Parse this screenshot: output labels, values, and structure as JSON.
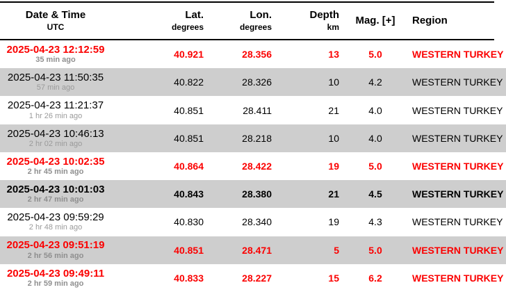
{
  "table": {
    "columns": [
      {
        "label": "Date & Time",
        "sublabel": "UTC"
      },
      {
        "label": "Lat.",
        "sublabel": "degrees"
      },
      {
        "label": "Lon.",
        "sublabel": "degrees"
      },
      {
        "label": "Depth",
        "sublabel": "km"
      },
      {
        "label": "Mag. [+]",
        "sublabel": ""
      },
      {
        "label": "Region",
        "sublabel": ""
      }
    ],
    "rows": [
      {
        "datetime": "2025-04-23 12:12:59",
        "ago": "35 min ago",
        "lat": "40.921",
        "lon": "28.356",
        "depth": "13",
        "mag": "5.0",
        "region": "WESTERN TURKEY",
        "style": "red"
      },
      {
        "datetime": "2025-04-23 11:50:35",
        "ago": "57 min ago",
        "lat": "40.822",
        "lon": "28.326",
        "depth": "10",
        "mag": "4.2",
        "region": "WESTERN TURKEY",
        "style": "normal"
      },
      {
        "datetime": "2025-04-23 11:21:37",
        "ago": "1 hr 26 min ago",
        "lat": "40.851",
        "lon": "28.411",
        "depth": "21",
        "mag": "4.0",
        "region": "WESTERN TURKEY",
        "style": "normal"
      },
      {
        "datetime": "2025-04-23 10:46:13",
        "ago": "2 hr 02 min ago",
        "lat": "40.851",
        "lon": "28.218",
        "depth": "10",
        "mag": "4.0",
        "region": "WESTERN TURKEY",
        "style": "normal"
      },
      {
        "datetime": "2025-04-23 10:02:35",
        "ago": "2 hr 45 min ago",
        "lat": "40.864",
        "lon": "28.422",
        "depth": "19",
        "mag": "5.0",
        "region": "WESTERN TURKEY",
        "style": "red"
      },
      {
        "datetime": "2025-04-23 10:01:03",
        "ago": "2 hr 47 min ago",
        "lat": "40.843",
        "lon": "28.380",
        "depth": "21",
        "mag": "4.5",
        "region": "WESTERN TURKEY",
        "style": "bold"
      },
      {
        "datetime": "2025-04-23 09:59:29",
        "ago": "2 hr 48 min ago",
        "lat": "40.830",
        "lon": "28.340",
        "depth": "19",
        "mag": "4.3",
        "region": "WESTERN TURKEY",
        "style": "normal"
      },
      {
        "datetime": "2025-04-23 09:51:19",
        "ago": "2 hr 56 min ago",
        "lat": "40.851",
        "lon": "28.471",
        "depth": "5",
        "mag": "5.0",
        "region": "WESTERN TURKEY",
        "style": "red"
      },
      {
        "datetime": "2025-04-23 09:49:11",
        "ago": "2 hr 59 min ago",
        "lat": "40.833",
        "lon": "28.227",
        "depth": "15",
        "mag": "6.2",
        "region": "WESTERN TURKEY",
        "style": "red"
      }
    ]
  },
  "colors": {
    "alert_red": "#fb0000",
    "row_alt_bg": "#cecece",
    "ago_gray": "#9a9a9a",
    "border_black": "#000000"
  }
}
